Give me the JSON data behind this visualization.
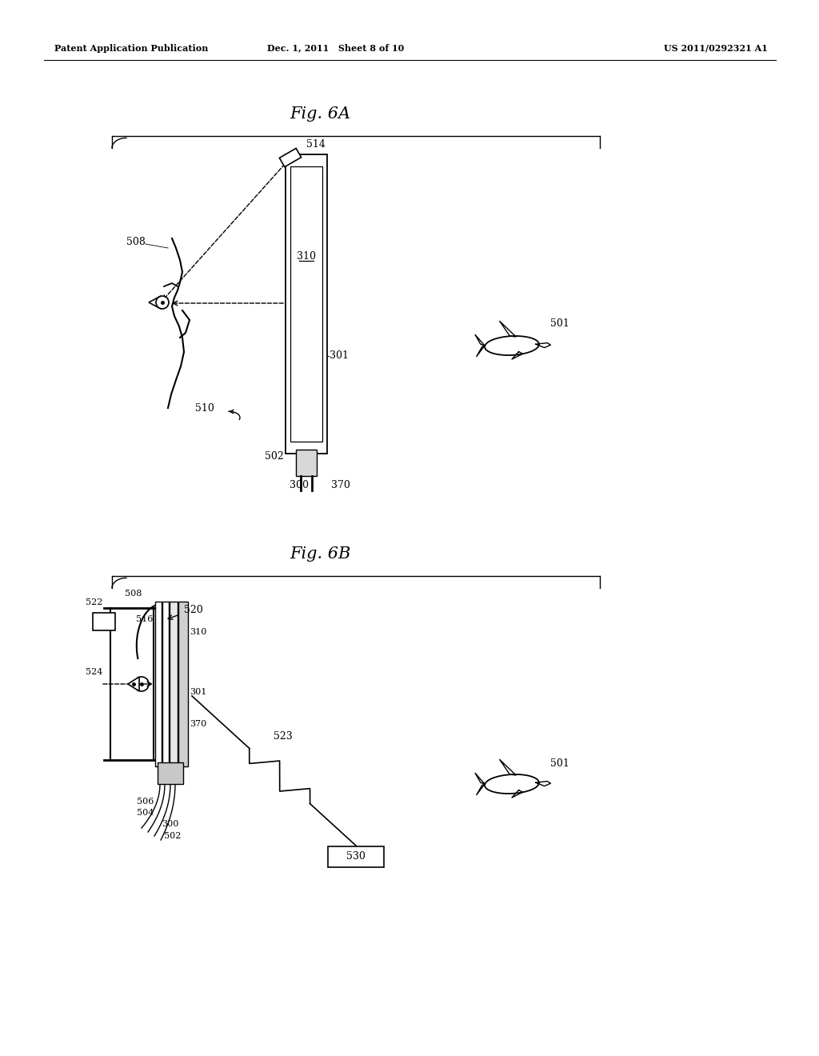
{
  "bg_color": "#ffffff",
  "header_left": "Patent Application Publication",
  "header_mid": "Dec. 1, 2011   Sheet 8 of 10",
  "header_right": "US 2011/0292321 A1",
  "fig6a_title": "Fig. 6A",
  "fig6b_title": "Fig. 6B",
  "l508": "508",
  "l514": "514",
  "l310": "310",
  "l301": "301",
  "l510": "510",
  "l502": "502",
  "l300": "300",
  "l370": "370",
  "l501": "501",
  "l522": "522",
  "l516": "516",
  "l520": "520",
  "l524": "524",
  "l523": "523",
  "l506": "506",
  "l504": "504",
  "l530": "530"
}
